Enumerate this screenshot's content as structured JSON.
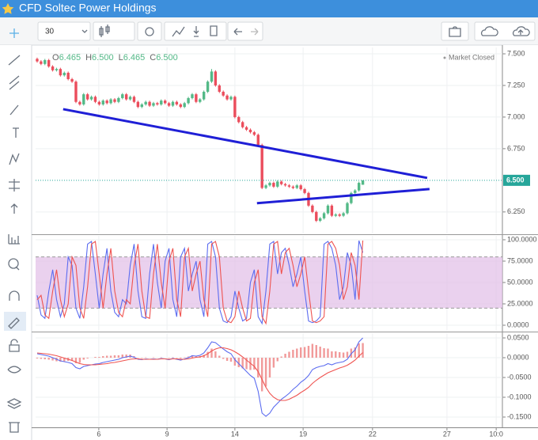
{
  "header": {
    "title": "CFD Soltec Power Holdings"
  },
  "toolbar": {
    "interval": "30"
  },
  "chart_data": [
    {
      "type": "candlestick",
      "ohlc_legend": [
        {
          "label": "O",
          "value": "6.465"
        },
        {
          "label": "H",
          "value": "6.500"
        },
        {
          "label": "L",
          "value": "6.465"
        },
        {
          "label": "C",
          "value": "6.500"
        }
      ],
      "status": "Market Closed",
      "up_color": "#53b987",
      "down_color": "#eb4d5c",
      "xlim": [
        -0.4,
        120
      ],
      "xticks": [
        {
          "value": 15.9,
          "label": "6"
        },
        {
          "value": 33.5,
          "label": "9"
        },
        {
          "value": 51.0,
          "label": "14"
        },
        {
          "value": 68.6,
          "label": "19"
        },
        {
          "value": 86.5,
          "label": "22"
        },
        {
          "value": 105.7,
          "label": "27"
        },
        {
          "value": 118.4,
          "label": "10:0"
        }
      ],
      "ylim": [
        6.08,
        7.55
      ],
      "yticks": [
        {
          "value": 7.5,
          "label": "7.500"
        },
        {
          "value": 7.25,
          "label": "7.250"
        },
        {
          "value": 7.0,
          "label": "7.000"
        },
        {
          "value": 6.75,
          "label": "6.750"
        },
        {
          "value": 6.25,
          "label": "6.250"
        }
      ],
      "grid": true,
      "price_line": {
        "value": 6.5,
        "label": "6.500",
        "color": "#26a69a"
      },
      "trendline_color": "#1f1fd6",
      "trendlines": [
        {
          "x": [
            6.7,
            100.6
          ],
          "y": [
            7.0625,
            6.519
          ]
        },
        {
          "x": [
            56.7,
            101.2
          ],
          "y": [
            6.319,
            6.431
          ]
        }
      ],
      "x": [
        0,
        1,
        2,
        3,
        4,
        5,
        6,
        7,
        8,
        9,
        10,
        11,
        12,
        13,
        14,
        15,
        16,
        17,
        18,
        19,
        20,
        21,
        22,
        23,
        24,
        25,
        26,
        27,
        28,
        29,
        30,
        31,
        32,
        33,
        34,
        35,
        36,
        37,
        38,
        39,
        40,
        41,
        42,
        43,
        44,
        45,
        46,
        47,
        48,
        49,
        50,
        51,
        52,
        53,
        54,
        55,
        56,
        57,
        58,
        59,
        60,
        61,
        62,
        63,
        64,
        65,
        66,
        67,
        68,
        69,
        70,
        71,
        72,
        73,
        74,
        75,
        76,
        77,
        78,
        79,
        80,
        81,
        82,
        83,
        84
      ],
      "ohlc": [
        [
          7.46,
          7.47,
          7.43,
          7.44
        ],
        [
          7.44,
          7.45,
          7.41,
          7.42
        ],
        [
          7.42,
          7.46,
          7.41,
          7.45
        ],
        [
          7.45,
          7.46,
          7.39,
          7.4
        ],
        [
          7.4,
          7.41,
          7.36,
          7.37
        ],
        [
          7.37,
          7.39,
          7.36,
          7.38
        ],
        [
          7.38,
          7.39,
          7.32,
          7.33
        ],
        [
          7.33,
          7.36,
          7.32,
          7.35
        ],
        [
          7.35,
          7.36,
          7.29,
          7.3
        ],
        [
          7.3,
          7.31,
          7.27,
          7.28
        ],
        [
          7.28,
          7.29,
          7.11,
          7.12
        ],
        [
          7.12,
          7.13,
          7.09,
          7.1
        ],
        [
          7.1,
          7.19,
          7.09,
          7.18
        ],
        [
          7.18,
          7.19,
          7.13,
          7.14
        ],
        [
          7.14,
          7.17,
          7.13,
          7.16
        ],
        [
          7.16,
          7.17,
          7.11,
          7.12
        ],
        [
          7.12,
          7.13,
          7.09,
          7.1
        ],
        [
          7.1,
          7.14,
          7.09,
          7.13
        ],
        [
          7.13,
          7.14,
          7.1,
          7.11
        ],
        [
          7.11,
          7.15,
          7.1,
          7.14
        ],
        [
          7.14,
          7.15,
          7.11,
          7.12
        ],
        [
          7.12,
          7.16,
          7.11,
          7.15
        ],
        [
          7.15,
          7.19,
          7.14,
          7.18
        ],
        [
          7.18,
          7.19,
          7.13,
          7.14
        ],
        [
          7.14,
          7.17,
          7.13,
          7.16
        ],
        [
          7.16,
          7.17,
          7.11,
          7.12
        ],
        [
          7.12,
          7.13,
          7.07,
          7.08
        ],
        [
          7.08,
          7.11,
          7.07,
          7.1
        ],
        [
          7.1,
          7.13,
          7.09,
          7.12
        ],
        [
          7.12,
          7.13,
          7.08,
          7.09
        ],
        [
          7.09,
          7.12,
          7.08,
          7.11
        ],
        [
          7.11,
          7.12,
          7.09,
          7.1
        ],
        [
          7.1,
          7.14,
          7.09,
          7.13
        ],
        [
          7.13,
          7.14,
          7.1,
          7.11
        ],
        [
          7.11,
          7.12,
          7.08,
          7.09
        ],
        [
          7.09,
          7.13,
          7.08,
          7.12
        ],
        [
          7.12,
          7.13,
          7.09,
          7.1
        ],
        [
          7.1,
          7.11,
          7.07,
          7.08
        ],
        [
          7.08,
          7.12,
          7.07,
          7.11
        ],
        [
          7.11,
          7.16,
          7.1,
          7.15
        ],
        [
          7.15,
          7.19,
          7.14,
          7.18
        ],
        [
          7.18,
          7.19,
          7.11,
          7.12
        ],
        [
          7.12,
          7.15,
          7.11,
          7.14
        ],
        [
          7.14,
          7.21,
          7.13,
          7.2
        ],
        [
          7.2,
          7.29,
          7.19,
          7.28
        ],
        [
          7.28,
          7.38,
          7.27,
          7.36
        ],
        [
          7.36,
          7.37,
          7.24,
          7.25
        ],
        [
          7.25,
          7.26,
          7.19,
          7.2
        ],
        [
          7.2,
          7.21,
          7.16,
          7.17
        ],
        [
          7.17,
          7.18,
          7.13,
          7.14
        ],
        [
          7.14,
          7.17,
          7.13,
          7.16
        ],
        [
          7.16,
          7.17,
          6.99,
          7.0
        ],
        [
          7.0,
          7.01,
          6.95,
          6.96
        ],
        [
          6.96,
          6.97,
          6.91,
          6.92
        ],
        [
          6.92,
          6.93,
          6.89,
          6.9
        ],
        [
          6.9,
          6.91,
          6.87,
          6.88
        ],
        [
          6.88,
          6.89,
          6.85,
          6.86
        ],
        [
          6.86,
          6.87,
          6.77,
          6.78
        ],
        [
          6.78,
          6.79,
          6.43,
          6.44
        ],
        [
          6.44,
          6.47,
          6.43,
          6.46
        ],
        [
          6.46,
          6.49,
          6.45,
          6.48
        ],
        [
          6.48,
          6.49,
          6.44,
          6.45
        ],
        [
          6.45,
          6.5,
          6.44,
          6.49
        ],
        [
          6.49,
          6.5,
          6.46,
          6.47
        ],
        [
          6.47,
          6.48,
          6.45,
          6.46
        ],
        [
          6.46,
          6.47,
          6.44,
          6.45
        ],
        [
          6.45,
          6.46,
          6.43,
          6.44
        ],
        [
          6.44,
          6.47,
          6.43,
          6.46
        ],
        [
          6.46,
          6.47,
          6.42,
          6.43
        ],
        [
          6.43,
          6.44,
          6.39,
          6.4
        ],
        [
          6.4,
          6.41,
          6.29,
          6.3
        ],
        [
          6.3,
          6.31,
          6.24,
          6.25
        ],
        [
          6.25,
          6.26,
          6.17,
          6.18
        ],
        [
          6.18,
          6.21,
          6.17,
          6.2
        ],
        [
          6.2,
          6.25,
          6.19,
          6.24
        ],
        [
          6.24,
          6.31,
          6.23,
          6.3
        ],
        [
          6.3,
          6.31,
          6.21,
          6.22
        ],
        [
          6.22,
          6.24,
          6.21,
          6.23
        ],
        [
          6.23,
          6.24,
          6.21,
          6.22
        ],
        [
          6.22,
          6.25,
          6.21,
          6.24
        ],
        [
          6.24,
          6.33,
          6.23,
          6.32
        ],
        [
          6.32,
          6.41,
          6.31,
          6.4
        ],
        [
          6.4,
          6.43,
          6.39,
          6.42
        ],
        [
          6.42,
          6.49,
          6.41,
          6.48
        ],
        [
          6.465,
          6.5,
          6.465,
          6.5
        ]
      ]
    },
    {
      "type": "line",
      "ylim": [
        -6.5,
        104.6
      ],
      "yticks": [
        {
          "value": 100,
          "label": "100.0000"
        },
        {
          "value": 75,
          "label": "75.0000"
        },
        {
          "value": 50,
          "label": "50.0000"
        },
        {
          "value": 25,
          "label": "25.0000"
        },
        {
          "value": 0,
          "label": "0.0000"
        }
      ],
      "band": [
        20,
        80
      ],
      "band_color": "#e1bee7",
      "series": [
        {
          "color": "#5b6cf0",
          "values": [
            35,
            12,
            8,
            40,
            65,
            30,
            10,
            25,
            80,
            70,
            20,
            8,
            45,
            95,
            98,
            60,
            20,
            60,
            90,
            40,
            15,
            10,
            30,
            25,
            70,
            95,
            40,
            10,
            8,
            60,
            95,
            50,
            20,
            75,
            90,
            30,
            10,
            80,
            90,
            40,
            60,
            75,
            30,
            10,
            95,
            98,
            80,
            20,
            5,
            3,
            10,
            40,
            20,
            5,
            8,
            50,
            65,
            10,
            2,
            40,
            95,
            98,
            60,
            85,
            90,
            70,
            45,
            60,
            80,
            40,
            5,
            3,
            5,
            10,
            95,
            98,
            90,
            70,
            30,
            45,
            85,
            70,
            30,
            99,
            85
          ]
        },
        {
          "color": "#ef5350",
          "values": [
            30,
            35,
            12,
            8,
            40,
            65,
            30,
            10,
            25,
            80,
            70,
            20,
            8,
            45,
            95,
            98,
            60,
            20,
            60,
            90,
            40,
            15,
            10,
            30,
            25,
            70,
            95,
            40,
            10,
            8,
            60,
            95,
            50,
            20,
            75,
            90,
            30,
            10,
            80,
            90,
            40,
            60,
            75,
            30,
            10,
            95,
            98,
            80,
            20,
            5,
            3,
            10,
            40,
            20,
            5,
            8,
            50,
            65,
            10,
            2,
            40,
            95,
            98,
            60,
            85,
            90,
            70,
            45,
            60,
            80,
            40,
            5,
            3,
            5,
            10,
            95,
            98,
            90,
            70,
            30,
            45,
            85,
            70,
            30,
            99
          ]
        }
      ]
    },
    {
      "type": "combo",
      "ylim": [
        -0.176,
        0.062
      ],
      "yticks": [
        {
          "value": 0.05,
          "label": "0.0500"
        },
        {
          "value": 0,
          "label": "0.0000"
        },
        {
          "value": -0.05,
          "label": "-0.0500"
        },
        {
          "value": -0.1,
          "label": "-0.1000"
        },
        {
          "value": -0.15,
          "label": "-0.1500"
        }
      ],
      "series": [
        {
          "style": "bar",
          "color": "#f19a9a",
          "values": [
            -0.002,
            -0.003,
            -0.004,
            -0.005,
            -0.007,
            -0.009,
            -0.01,
            -0.009,
            -0.008,
            -0.008,
            -0.014,
            -0.013,
            -0.005,
            -0.002,
            0.0,
            0.002,
            0.002,
            0.004,
            0.005,
            0.005,
            0.006,
            0.006,
            0.008,
            0.008,
            0.008,
            0.004,
            -0.001,
            -0.001,
            0.001,
            0.0,
            0.001,
            0.0,
            0.001,
            0.0,
            -0.001,
            0.001,
            -0.001,
            -0.002,
            0.001,
            0.003,
            0.006,
            0.003,
            0.004,
            0.007,
            0.015,
            0.023,
            0.016,
            0.005,
            -0.003,
            -0.008,
            -0.01,
            -0.02,
            -0.024,
            -0.027,
            -0.029,
            -0.031,
            -0.03,
            -0.05,
            -0.085,
            -0.073,
            -0.05,
            -0.025,
            -0.009,
            0.003,
            0.01,
            0.015,
            0.02,
            0.023,
            0.026,
            0.027,
            0.03,
            0.035,
            0.032,
            0.028,
            0.024,
            0.023,
            0.016,
            0.016,
            0.014,
            0.013,
            0.015,
            0.023,
            0.026,
            0.036,
            0.037
          ]
        },
        {
          "style": "line",
          "color": "#5b6cf0",
          "values": [
            0.01,
            0.008,
            0.006,
            0.004,
            0.0,
            -0.004,
            -0.008,
            -0.01,
            -0.012,
            -0.015,
            -0.025,
            -0.028,
            -0.022,
            -0.02,
            -0.018,
            -0.016,
            -0.015,
            -0.012,
            -0.01,
            -0.008,
            -0.006,
            -0.004,
            0.0,
            0.002,
            0.004,
            0.001,
            -0.004,
            -0.005,
            -0.003,
            -0.004,
            -0.003,
            -0.004,
            -0.002,
            -0.003,
            -0.005,
            -0.002,
            -0.004,
            -0.006,
            -0.003,
            0.0,
            0.005,
            0.004,
            0.006,
            0.012,
            0.025,
            0.04,
            0.038,
            0.03,
            0.022,
            0.015,
            0.01,
            -0.005,
            -0.015,
            -0.025,
            -0.035,
            -0.045,
            -0.052,
            -0.085,
            -0.14,
            -0.148,
            -0.14,
            -0.125,
            -0.115,
            -0.105,
            -0.098,
            -0.09,
            -0.08,
            -0.072,
            -0.062,
            -0.055,
            -0.045,
            -0.03,
            -0.025,
            -0.022,
            -0.02,
            -0.015,
            -0.018,
            -0.014,
            -0.012,
            -0.01,
            -0.004,
            0.01,
            0.02,
            0.04,
            0.05
          ]
        },
        {
          "style": "line",
          "color": "#ef5350",
          "values": [
            0.012,
            0.011,
            0.01,
            0.009,
            0.007,
            0.005,
            0.002,
            -0.001,
            -0.004,
            -0.007,
            -0.011,
            -0.015,
            -0.017,
            -0.018,
            -0.018,
            -0.018,
            -0.017,
            -0.016,
            -0.015,
            -0.013,
            -0.012,
            -0.01,
            -0.008,
            -0.006,
            -0.004,
            -0.003,
            -0.003,
            -0.004,
            -0.004,
            -0.004,
            -0.004,
            -0.004,
            -0.003,
            -0.003,
            -0.004,
            -0.003,
            -0.003,
            -0.004,
            -0.004,
            -0.003,
            -0.001,
            0.001,
            0.002,
            0.005,
            0.01,
            0.017,
            0.022,
            0.025,
            0.025,
            0.023,
            0.02,
            0.015,
            0.009,
            0.002,
            -0.006,
            -0.014,
            -0.022,
            -0.035,
            -0.055,
            -0.075,
            -0.09,
            -0.1,
            -0.106,
            -0.108,
            -0.108,
            -0.105,
            -0.1,
            -0.095,
            -0.088,
            -0.082,
            -0.075,
            -0.065,
            -0.057,
            -0.05,
            -0.044,
            -0.038,
            -0.034,
            -0.03,
            -0.026,
            -0.023,
            -0.019,
            -0.013,
            -0.006,
            0.004,
            0.013
          ]
        }
      ]
    }
  ]
}
